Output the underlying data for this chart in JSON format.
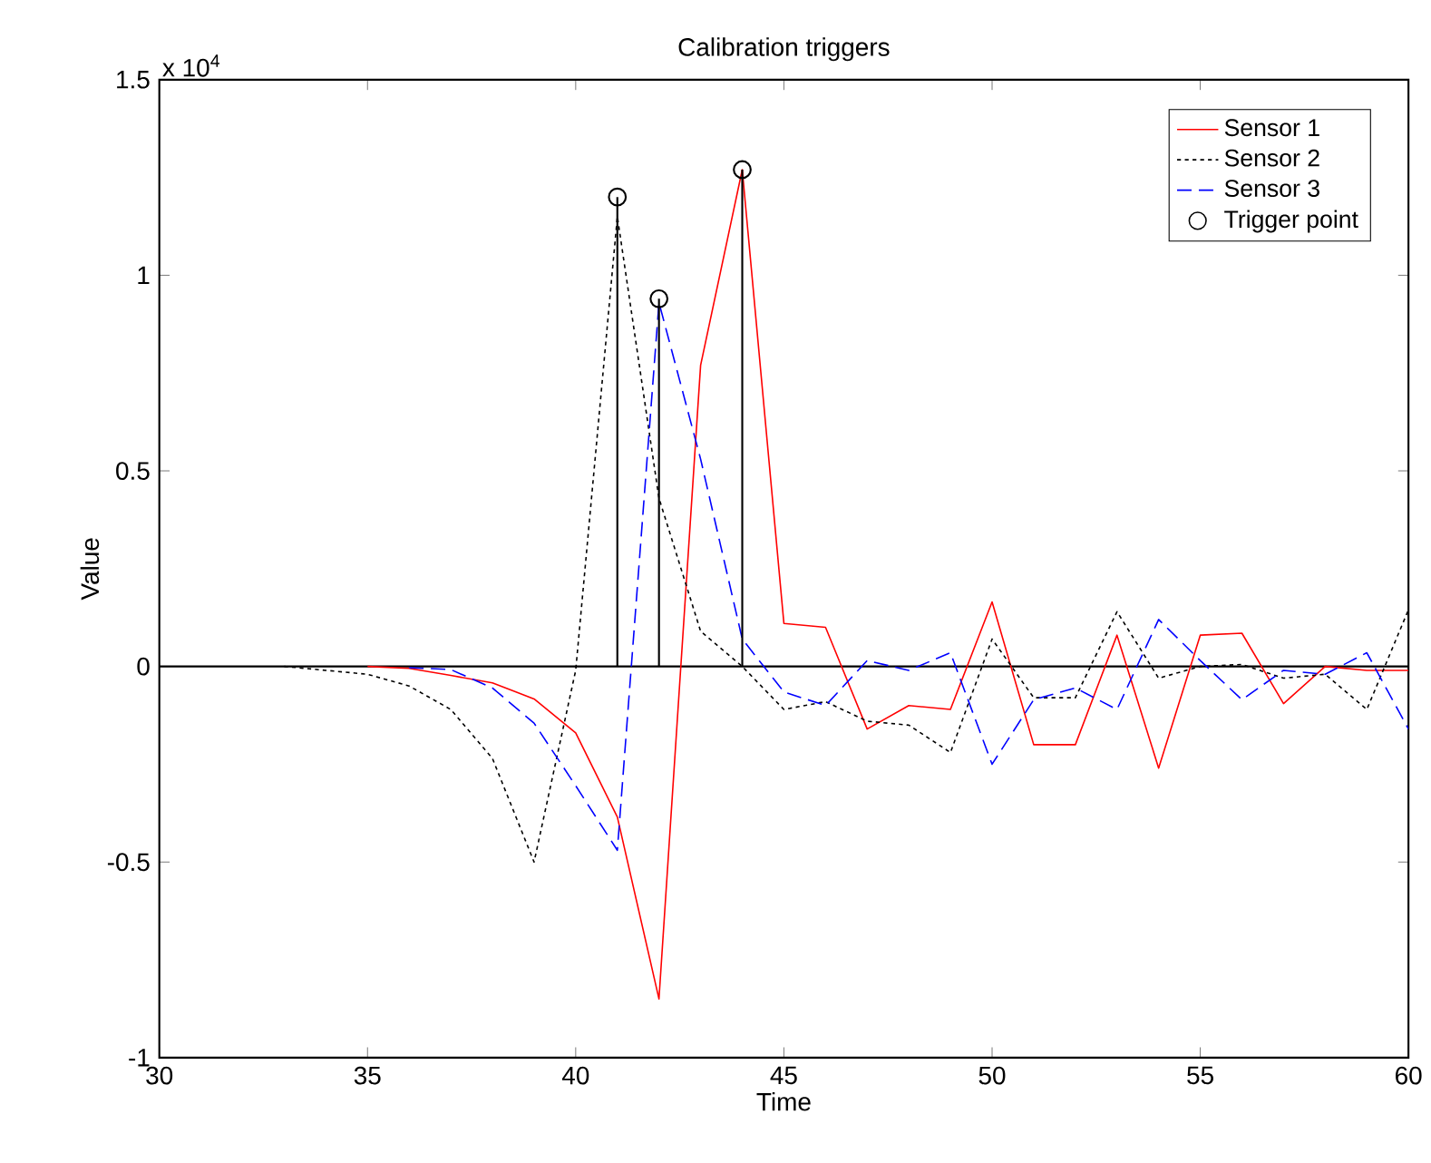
{
  "chart_data": {
    "type": "line",
    "title": "Calibration triggers",
    "xlabel": "Time",
    "ylabel": "Value",
    "annotations": [
      "x 10$^{4}$"
    ],
    "xlim": [
      30,
      60
    ],
    "xticks": [
      30,
      35,
      40,
      45,
      50,
      55,
      60
    ],
    "ylim": [
      -1,
      1.5
    ],
    "yticks": [
      -1,
      -0.5,
      0,
      0.5,
      1,
      1.5
    ],
    "legend": "top right",
    "ref_lines": [
      {
        "axis": "y",
        "value": 0,
        "color": "#000000"
      }
    ],
    "series": [
      {
        "name": "Sensor 1",
        "color": "#ff0000",
        "line_style": "solid",
        "x": [
          35,
          36,
          37,
          38,
          39,
          40,
          41,
          42,
          43,
          44,
          45,
          46,
          47,
          48,
          49,
          50,
          51,
          52,
          53,
          54,
          55,
          56,
          57,
          58,
          59,
          60
        ],
        "values": [
          0,
          -0.005,
          -0.023,
          -0.042,
          -0.083,
          -0.17,
          -0.385,
          -0.85,
          0.77,
          1.27,
          0.11,
          0.1,
          -0.16,
          -0.1,
          -0.11,
          0.165,
          -0.2,
          -0.2,
          0.08,
          -0.26,
          0.08,
          0.085,
          -0.095,
          0,
          -0.01,
          -0.01
        ]
      },
      {
        "name": "Sensor 2",
        "color": "#000000",
        "line_style": "dotted",
        "x": [
          33,
          34,
          35,
          36,
          37,
          38,
          39,
          40,
          41,
          42,
          43,
          44,
          45,
          46,
          47,
          48,
          49,
          50,
          51,
          52,
          53,
          54,
          55,
          56,
          57,
          58,
          59,
          60
        ],
        "values": [
          0,
          -0.01,
          -0.02,
          -0.05,
          -0.11,
          -0.235,
          -0.5,
          -0.01,
          1.15,
          0.43,
          0.09,
          0,
          -0.11,
          -0.09,
          -0.14,
          -0.15,
          -0.22,
          0.07,
          -0.08,
          -0.08,
          0.14,
          -0.03,
          0,
          0.005,
          -0.03,
          -0.02,
          -0.11,
          0.145
        ]
      },
      {
        "name": "Sensor 3",
        "color": "#0000ff",
        "line_style": "dashed",
        "x": [
          36,
          37,
          38,
          39,
          40,
          41,
          42,
          43,
          44,
          45,
          46,
          47,
          48,
          49,
          50,
          51,
          52,
          53,
          54,
          55,
          56,
          57,
          58,
          59,
          60
        ],
        "values": [
          -0.003,
          -0.008,
          -0.055,
          -0.145,
          -0.305,
          -0.47,
          0.93,
          0.53,
          0.07,
          -0.065,
          -0.1,
          0.015,
          -0.01,
          0.035,
          -0.25,
          -0.085,
          -0.055,
          -0.11,
          0.12,
          0.015,
          -0.085,
          -0.01,
          -0.02,
          0.035,
          -0.16
        ]
      },
      {
        "name": "Trigger point",
        "type": "lollipop",
        "color": "#000000",
        "marker": "circle",
        "x": [
          41,
          42,
          44
        ],
        "values": [
          1.2,
          0.94,
          1.27
        ]
      }
    ]
  }
}
